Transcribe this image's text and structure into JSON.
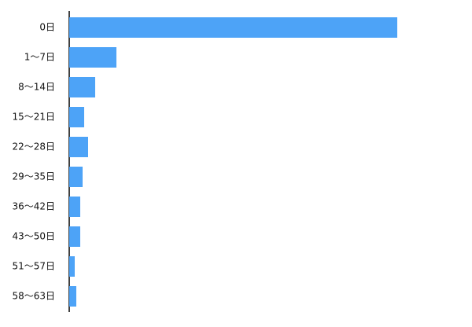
{
  "chart_data": {
    "type": "barh",
    "categories": [
      "0日",
      "1〜7日",
      "8〜14日",
      "15〜21日",
      "22〜28日",
      "29〜35日",
      "36〜42日",
      "43〜50日",
      "51〜57日",
      "58〜63日"
    ],
    "values": [
      417,
      60,
      33,
      19,
      24,
      17,
      14,
      14,
      7,
      9
    ],
    "color": "#4da3f7"
  }
}
